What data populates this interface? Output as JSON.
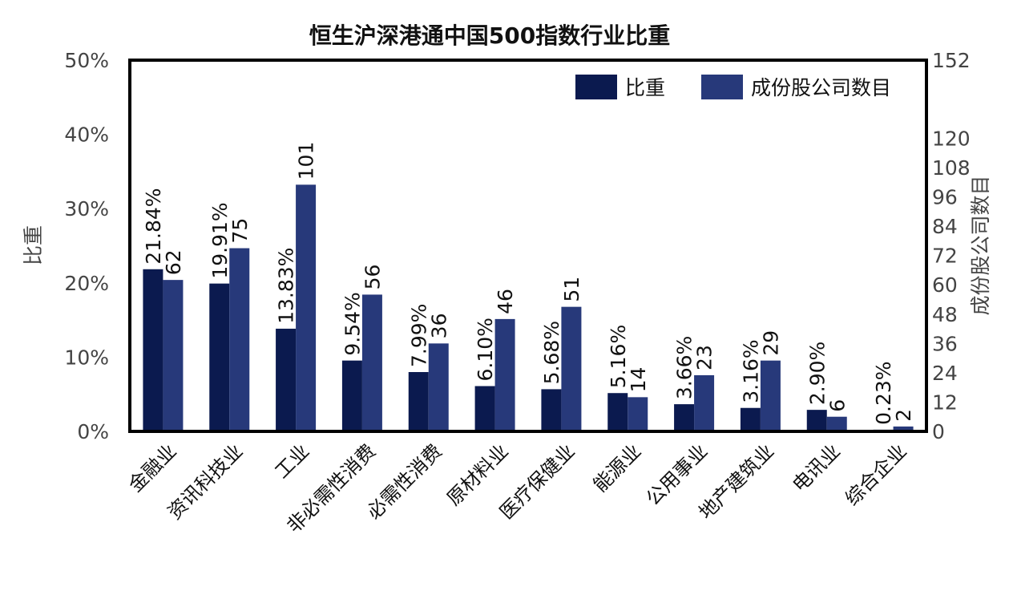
{
  "chart_data": {
    "type": "bar",
    "title": "恒生沪深港通中国500指数行业比重",
    "categories": [
      "金融业",
      "资讯科技业",
      "工业",
      "非必需性消费",
      "必需性消费",
      "原材料业",
      "医疗保健业",
      "能源业",
      "公用事业",
      "地产建筑业",
      "电讯业",
      "综合企业"
    ],
    "series": [
      {
        "name": "比重",
        "axis": "left",
        "color": "#0b1a4f",
        "values": [
          21.84,
          19.91,
          13.83,
          9.54,
          7.99,
          6.1,
          5.68,
          5.16,
          3.66,
          3.16,
          2.9,
          0.23
        ],
        "labels": [
          "21.84%",
          "19.91%",
          "13.83%",
          "9.54%",
          "7.99%",
          "6.10%",
          "5.68%",
          "5.16%",
          "3.66%",
          "3.16%",
          "2.90%",
          "0.23%"
        ]
      },
      {
        "name": "成份股公司数目",
        "axis": "right",
        "color": "#27397a",
        "values": [
          62,
          75,
          101,
          56,
          36,
          46,
          51,
          14,
          23,
          29,
          6,
          2
        ],
        "labels": [
          "62",
          "75",
          "101",
          "56",
          "36",
          "46",
          "51",
          "14",
          "23",
          "29",
          "6",
          "2"
        ]
      }
    ],
    "y_left": {
      "label": "比重",
      "range": [
        0,
        50
      ],
      "ticks": [
        0,
        10,
        20,
        30,
        40,
        50
      ],
      "tick_labels": [
        "0%",
        "10%",
        "20%",
        "30%",
        "40%",
        "50%"
      ]
    },
    "y_right": {
      "label": "成份股公司数目",
      "range": [
        0,
        152
      ],
      "ticks": [
        0,
        12,
        24,
        36,
        48,
        60,
        72,
        84,
        96,
        108,
        120,
        152
      ],
      "tick_labels": [
        "0",
        "12",
        "24",
        "36",
        "48",
        "60",
        "72",
        "84",
        "96",
        "108",
        "120",
        "152"
      ]
    },
    "legend_position": "top-right",
    "grid": false
  }
}
